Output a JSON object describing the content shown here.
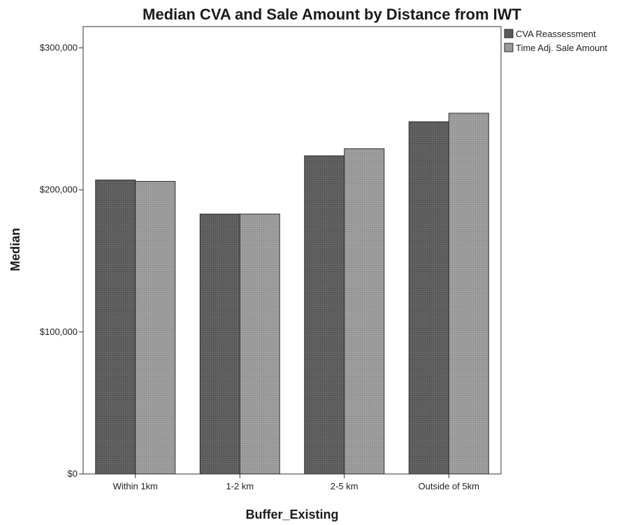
{
  "chart_data": {
    "type": "bar",
    "title": "Median CVA and Sale Amount by Distance from IWT",
    "xlabel": "Buffer_Existing",
    "ylabel": "Median",
    "categories": [
      "Within 1km",
      "1-2 km",
      "2-5 km",
      "Outside of 5km"
    ],
    "series": [
      {
        "name": "CVA Reassessment",
        "values": [
          207000,
          183000,
          224000,
          248000
        ],
        "color": "#5a5a5a"
      },
      {
        "name": "Time Adj. Sale Amount",
        "values": [
          206000,
          183000,
          229000,
          254000
        ],
        "color": "#9a9a9a"
      }
    ],
    "ylim": [
      0,
      315000
    ],
    "yticks": [
      0,
      100000,
      200000,
      300000
    ],
    "ytick_labels": [
      "$0",
      "$100,000",
      "$200,000",
      "$300,000"
    ],
    "grid": false,
    "legend_position": "top-right"
  }
}
